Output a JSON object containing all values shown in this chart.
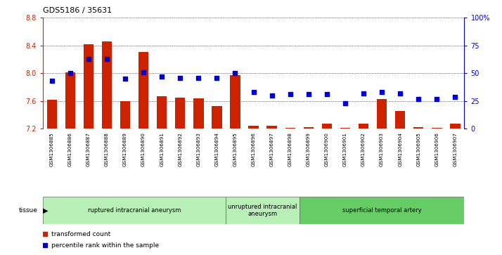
{
  "title": "GDS5186 / 35631",
  "samples": [
    "GSM1306885",
    "GSM1306886",
    "GSM1306887",
    "GSM1306888",
    "GSM1306889",
    "GSM1306890",
    "GSM1306891",
    "GSM1306892",
    "GSM1306893",
    "GSM1306894",
    "GSM1306895",
    "GSM1306896",
    "GSM1306897",
    "GSM1306898",
    "GSM1306899",
    "GSM1306900",
    "GSM1306901",
    "GSM1306902",
    "GSM1306903",
    "GSM1306904",
    "GSM1306905",
    "GSM1306906",
    "GSM1306907"
  ],
  "bar_values": [
    7.62,
    8.01,
    8.42,
    8.46,
    7.6,
    8.31,
    7.67,
    7.65,
    7.64,
    7.53,
    7.97,
    7.24,
    7.24,
    7.21,
    7.22,
    7.27,
    7.21,
    7.27,
    7.63,
    7.46,
    7.22,
    7.21,
    7.27
  ],
  "blue_values": [
    43,
    50,
    63,
    63,
    45,
    51,
    47,
    46,
    46,
    46,
    50,
    33,
    30,
    31,
    31,
    31,
    23,
    32,
    33,
    32,
    27,
    27,
    29
  ],
  "ylim_left": [
    7.2,
    8.8
  ],
  "ylim_right": [
    0,
    100
  ],
  "yticks_left": [
    7.2,
    7.6,
    8.0,
    8.4,
    8.8
  ],
  "yticks_right": [
    0,
    25,
    50,
    75,
    100
  ],
  "ytick_labels_right": [
    "0",
    "25",
    "50",
    "75",
    "100%"
  ],
  "bar_color": "#cc2200",
  "dot_color": "#0000cc",
  "groups": [
    {
      "label": "ruptured intracranial aneurysm",
      "start": 0,
      "end": 10
    },
    {
      "label": "unruptured intracranial\naneurysm",
      "start": 10,
      "end": 14
    },
    {
      "label": "superficial temporal artery",
      "start": 14,
      "end": 23
    }
  ],
  "group_colors": [
    "#b8f0b8",
    "#b8f0b8",
    "#66cc66"
  ],
  "legend_bar_label": "transformed count",
  "legend_dot_label": "percentile rank within the sample"
}
